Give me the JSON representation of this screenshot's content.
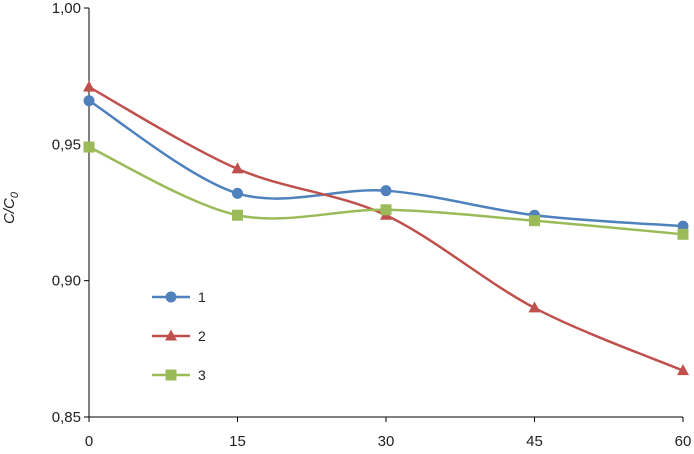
{
  "chart_data": {
    "type": "line",
    "title": "",
    "xlabel": "",
    "ylabel": "C/C",
    "ylabel_subscript": "0",
    "x": [
      0,
      15,
      30,
      45,
      60
    ],
    "x_ticks": [
      "0",
      "15",
      "30",
      "45",
      "60"
    ],
    "xlim": [
      0,
      60
    ],
    "ylim": [
      0.85,
      1.0
    ],
    "y_ticks": [
      {
        "value": 0.85,
        "label": "0,85"
      },
      {
        "value": 0.9,
        "label": "0,90"
      },
      {
        "value": 0.95,
        "label": "0,95"
      },
      {
        "value": 1.0,
        "label": "1,00"
      }
    ],
    "grid": false,
    "smoothed": true,
    "legend_position": "center-left",
    "series": [
      {
        "name": "1",
        "color": "#4F81BD",
        "marker": "circle",
        "values": [
          0.966,
          0.932,
          0.933,
          0.924,
          0.92
        ]
      },
      {
        "name": "2",
        "color": "#C0504D",
        "marker": "triangle",
        "values": [
          0.971,
          0.941,
          0.924,
          0.89,
          0.867
        ]
      },
      {
        "name": "3",
        "color": "#9BBB59",
        "marker": "square",
        "values": [
          0.949,
          0.924,
          0.926,
          0.922,
          0.917
        ]
      }
    ]
  }
}
